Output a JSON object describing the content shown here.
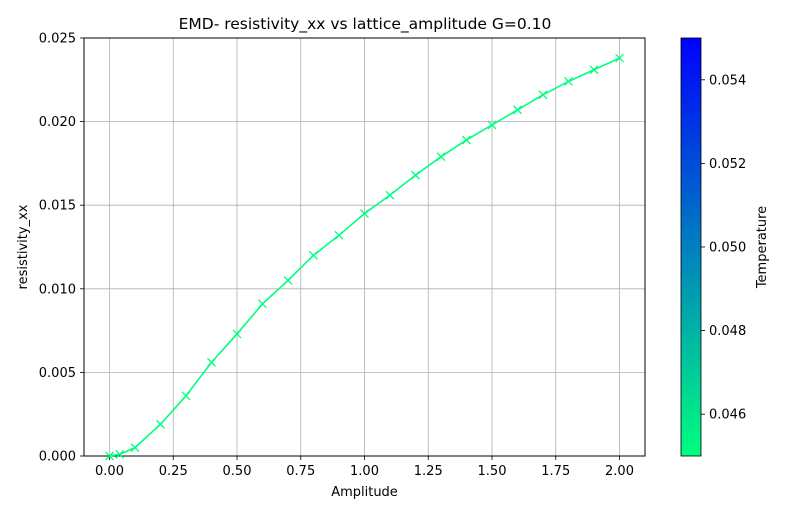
{
  "chart_data": {
    "type": "line",
    "title": "EMD- resistivity_xx vs lattice_amplitude G=0.10",
    "xlabel": "Amplitude",
    "ylabel": "resistivity_xx",
    "xlim": [
      -0.1,
      2.1
    ],
    "ylim": [
      0,
      0.025
    ],
    "xticks": [
      "0.00",
      "0.25",
      "0.50",
      "0.75",
      "1.00",
      "1.25",
      "1.50",
      "1.75",
      "2.00"
    ],
    "yticks": [
      "0.000",
      "0.005",
      "0.010",
      "0.015",
      "0.020",
      "0.025"
    ],
    "grid": true,
    "marker": "x",
    "series": [
      {
        "color": "#00ff7f",
        "x": [
          0.0,
          0.04,
          0.1,
          0.2,
          0.3,
          0.4,
          0.5,
          0.6,
          0.7,
          0.8,
          0.9,
          1.0,
          1.1,
          1.2,
          1.3,
          1.4,
          1.5,
          1.6,
          1.7,
          1.8,
          1.9,
          2.0
        ],
        "y": [
          0.0,
          0.0001,
          0.0005,
          0.0019,
          0.0036,
          0.0056,
          0.0073,
          0.0091,
          0.0105,
          0.012,
          0.0132,
          0.0145,
          0.0156,
          0.0168,
          0.0179,
          0.0189,
          0.0198,
          0.0207,
          0.0216,
          0.0224,
          0.0231,
          0.0238
        ]
      }
    ],
    "colorbar": {
      "label": "Temperature",
      "range": [
        0.045,
        0.055
      ],
      "ticks": [
        "0.046",
        "0.048",
        "0.050",
        "0.052",
        "0.054"
      ],
      "colormap_low": "#00ff7f",
      "colormap_high": "#0000ff"
    }
  }
}
